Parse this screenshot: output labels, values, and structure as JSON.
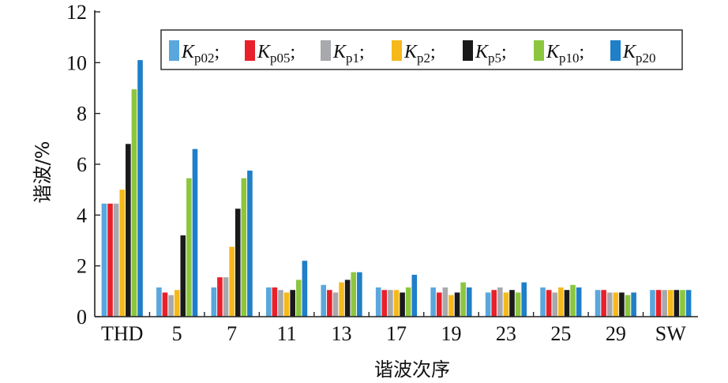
{
  "chart_data": {
    "type": "bar",
    "xlabel": "谐波次序",
    "ylabel": "谐波/%",
    "ylim": [
      0,
      12
    ],
    "yticks": [
      0,
      2,
      4,
      6,
      8,
      10,
      12
    ],
    "grid": false,
    "legend_position": "top-right",
    "categories": [
      "THD",
      "5",
      "7",
      "11",
      "13",
      "17",
      "19",
      "23",
      "25",
      "29",
      "SW"
    ],
    "series": [
      {
        "name": "Kp02",
        "symbol": "K",
        "subscript": "p02",
        "color": "#5aa7dd",
        "values": [
          4.45,
          1.15,
          1.15,
          1.15,
          1.25,
          1.15,
          1.15,
          0.95,
          1.15,
          1.05,
          1.05
        ]
      },
      {
        "name": "Kp05",
        "symbol": "K",
        "subscript": "p05",
        "color": "#e8202a",
        "values": [
          4.45,
          0.95,
          1.55,
          1.15,
          1.05,
          1.05,
          0.95,
          1.05,
          1.05,
          1.05,
          1.05
        ]
      },
      {
        "name": "Kp1",
        "symbol": "K",
        "subscript": "p1",
        "color": "#a8a9ad",
        "values": [
          4.45,
          0.85,
          1.55,
          1.05,
          0.95,
          1.05,
          1.15,
          1.15,
          0.95,
          0.95,
          1.05
        ]
      },
      {
        "name": "Kp2",
        "symbol": "K",
        "subscript": "p2",
        "color": "#f5b91b",
        "values": [
          5.0,
          1.05,
          2.75,
          0.95,
          1.35,
          1.05,
          0.85,
          0.95,
          1.15,
          0.95,
          1.05
        ]
      },
      {
        "name": "Kp5",
        "symbol": "K",
        "subscript": "p5",
        "color": "#1a1a1a",
        "values": [
          6.8,
          3.2,
          4.25,
          1.05,
          1.45,
          0.95,
          0.95,
          1.05,
          1.05,
          0.95,
          1.05
        ]
      },
      {
        "name": "Kp10",
        "symbol": "K",
        "subscript": "p10",
        "color": "#8cc63f",
        "values": [
          8.95,
          5.45,
          5.45,
          1.45,
          1.75,
          1.15,
          1.35,
          0.95,
          1.25,
          0.85,
          1.05
        ]
      },
      {
        "name": "Kp20",
        "symbol": "K",
        "subscript": "p20",
        "color": "#1f7fc8",
        "values": [
          10.1,
          6.6,
          5.75,
          2.2,
          1.75,
          1.65,
          1.15,
          1.35,
          1.15,
          0.95,
          1.05
        ]
      }
    ]
  }
}
